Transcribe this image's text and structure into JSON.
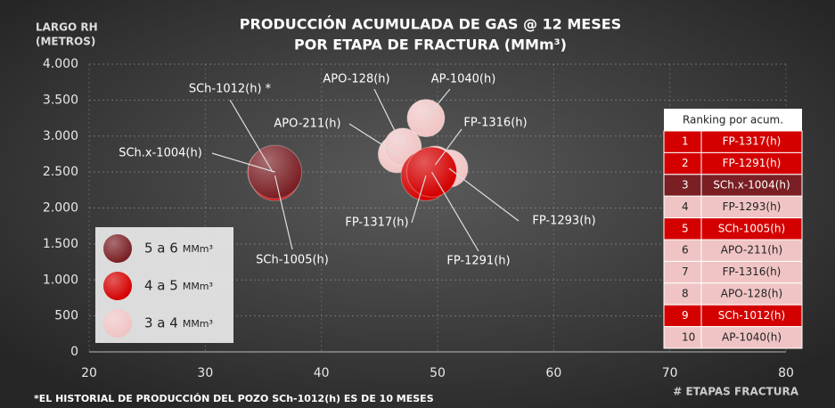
{
  "chart_data": {
    "type": "bubble",
    "title": [
      "PRODUCCIÓN ACUMULADA DE GAS @ 12 MESES",
      "POR ETAPA DE FRACTURA (MMm³)"
    ],
    "ylabel": [
      "LARGO RH",
      "(METROS)"
    ],
    "xlabel": "# ETAPAS FRACTURA",
    "footnote": "*EL HISTORIAL DE PRODUCCIÓN DEL POZO SCh-1012(h) ES DE 10 MESES",
    "xlim": [
      20,
      80
    ],
    "xticks": [
      20,
      30,
      40,
      50,
      60,
      70,
      80
    ],
    "ylim": [
      0,
      4000
    ],
    "yticks": [
      0,
      500,
      {
        "value": 1000,
        "label": "1.000"
      },
      {
        "value": 1500,
        "label": "1.500"
      },
      {
        "value": 2000,
        "label": "2.000"
      },
      {
        "value": 2500,
        "label": "2.500"
      },
      {
        "value": 3000,
        "label": "3.000"
      },
      {
        "value": 3500,
        "label": "3.500"
      },
      {
        "value": 4000,
        "label": "4.000"
      }
    ],
    "grid": true,
    "legend": "bottom-left",
    "size_unit": "MMm³",
    "series": [
      {
        "name": "5 a 6",
        "color": "#7a1f24",
        "x": [
          36
        ],
        "y": [
          2500
        ],
        "labels": [
          "SCh.x-1004(h)"
        ]
      },
      {
        "name": "4 a 5",
        "color": "#d40000",
        "x": [
          35.8,
          36,
          49,
          49.5
        ],
        "y": [
          2500,
          2450,
          2450,
          2500
        ],
        "labels": [
          "SCh-1012(h) *",
          "SCh-1005(h)",
          "FP-1317(h)",
          "FP-1291(h)"
        ]
      },
      {
        "name": "3 a 4",
        "color": "#f0c4c4",
        "x": [
          46.5,
          47,
          49,
          49.8,
          51
        ],
        "y": [
          2750,
          2850,
          3250,
          2600,
          2550
        ],
        "labels": [
          "APO-211(h)",
          "APO-128(h)",
          "AP-1040(h)",
          "FP-1316(h)",
          "FP-1293(h)"
        ]
      }
    ],
    "ranking": {
      "title": "Ranking por acum.",
      "rows": [
        {
          "rank": 1,
          "well": "FP-1317(h)",
          "color": "#d40000"
        },
        {
          "rank": 2,
          "well": "FP-1291(h)",
          "color": "#d40000"
        },
        {
          "rank": 3,
          "well": "SCh.x-1004(h)",
          "color": "#7a1f24"
        },
        {
          "rank": 4,
          "well": "FP-1293(h)",
          "color": "#f0c4c4"
        },
        {
          "rank": 5,
          "well": "SCh-1005(h)",
          "color": "#d40000"
        },
        {
          "rank": 6,
          "well": "APO-211(h)",
          "color": "#f0c4c4"
        },
        {
          "rank": 7,
          "well": "FP-1316(h)",
          "color": "#f0c4c4"
        },
        {
          "rank": 8,
          "well": "APO-128(h)",
          "color": "#f0c4c4"
        },
        {
          "rank": 9,
          "well": "SCh-1012(h)",
          "color": "#d40000"
        },
        {
          "rank": 10,
          "well": "AP-1040(h)",
          "color": "#f0c4c4"
        }
      ]
    }
  }
}
